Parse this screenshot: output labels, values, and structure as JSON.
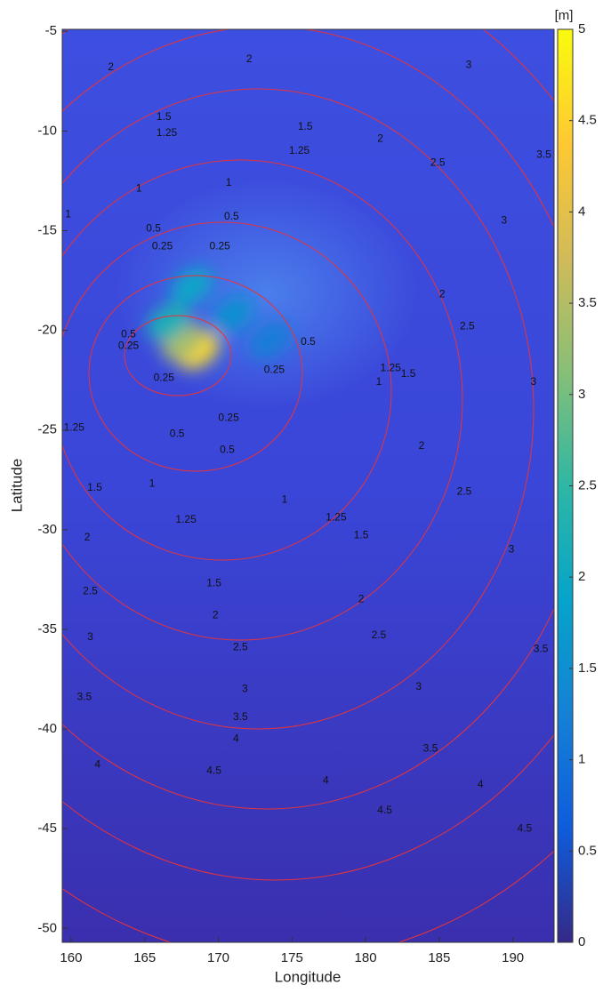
{
  "chart_data": {
    "type": "heatmap",
    "xlabel": "Longitude",
    "ylabel": "Latitude",
    "colorbar_label": "[m]",
    "xlim": [
      159.4,
      192.8
    ],
    "ylim": [
      -50.7,
      -4.9
    ],
    "xticks": [
      160,
      165,
      170,
      175,
      180,
      185,
      190
    ],
    "yticks": [
      -5,
      -10,
      -15,
      -20,
      -25,
      -30,
      -35,
      -40,
      -45,
      -50
    ],
    "clim": [
      0,
      5
    ],
    "cticks": [
      0,
      0.5,
      1,
      1.5,
      2,
      2.5,
      3,
      3.5,
      4,
      4.5,
      5
    ],
    "colormap": [
      "#352a87",
      "#0f5cdd",
      "#1481d6",
      "#06a4ca",
      "#2eb7a4",
      "#87bf77",
      "#d1bb59",
      "#fec832",
      "#f9fb0e"
    ],
    "contour_color": "#e8333a",
    "hotspots": [
      {
        "x": 168.6,
        "y": -21.0,
        "value": 4.6
      },
      {
        "x": 167.6,
        "y": -20.6,
        "value": 3.4
      },
      {
        "x": 166.6,
        "y": -19.6,
        "value": 2.2
      },
      {
        "x": 168.2,
        "y": -17.8,
        "value": 1.9
      },
      {
        "x": 171.0,
        "y": -19.2,
        "value": 1.5
      },
      {
        "x": 173.5,
        "y": -20.5,
        "value": 1.2
      }
    ],
    "contour_labels": [
      {
        "value": 2,
        "x": 162.7,
        "y": -6.8
      },
      {
        "value": 2,
        "x": 172.1,
        "y": -6.4
      },
      {
        "value": 3,
        "x": 187.0,
        "y": -6.7
      },
      {
        "value": 1.5,
        "x": 166.3,
        "y": -9.3
      },
      {
        "value": 1.5,
        "x": 175.9,
        "y": -9.8
      },
      {
        "value": 1.25,
        "x": 166.5,
        "y": -10.1
      },
      {
        "value": 1.25,
        "x": 175.5,
        "y": -11.0
      },
      {
        "value": 2,
        "x": 181.0,
        "y": -10.4
      },
      {
        "value": 2.5,
        "x": 184.9,
        "y": -11.6
      },
      {
        "value": 3.5,
        "x": 192.1,
        "y": -11.2
      },
      {
        "value": 1,
        "x": 164.6,
        "y": -12.9
      },
      {
        "value": 1,
        "x": 170.7,
        "y": -12.6
      },
      {
        "value": 1,
        "x": 159.8,
        "y": -14.2
      },
      {
        "value": 0.5,
        "x": 170.9,
        "y": -14.3
      },
      {
        "value": 0.5,
        "x": 165.6,
        "y": -14.9
      },
      {
        "value": 0.25,
        "x": 166.2,
        "y": -15.8
      },
      {
        "value": 0.25,
        "x": 170.1,
        "y": -15.8
      },
      {
        "value": 3,
        "x": 189.4,
        "y": -14.5
      },
      {
        "value": 2,
        "x": 185.2,
        "y": -18.2
      },
      {
        "value": 2.5,
        "x": 186.9,
        "y": -19.8
      },
      {
        "value": 0.5,
        "x": 163.9,
        "y": -20.2
      },
      {
        "value": 0.25,
        "x": 163.9,
        "y": -20.8
      },
      {
        "value": 0.5,
        "x": 176.1,
        "y": -20.6
      },
      {
        "value": 0.25,
        "x": 173.8,
        "y": -22.0
      },
      {
        "value": 1.25,
        "x": 181.7,
        "y": -21.9
      },
      {
        "value": 1.5,
        "x": 182.9,
        "y": -22.2
      },
      {
        "value": 1,
        "x": 180.9,
        "y": -22.6
      },
      {
        "value": 3,
        "x": 191.4,
        "y": -22.6
      },
      {
        "value": 0.25,
        "x": 166.3,
        "y": -22.4
      },
      {
        "value": 0.25,
        "x": 170.7,
        "y": -24.4
      },
      {
        "value": 0.5,
        "x": 167.2,
        "y": -25.2
      },
      {
        "value": 0.5,
        "x": 170.6,
        "y": -26.0
      },
      {
        "value": 1.25,
        "x": 160.2,
        "y": -24.9
      },
      {
        "value": 2,
        "x": 183.8,
        "y": -25.8
      },
      {
        "value": 1.5,
        "x": 161.6,
        "y": -27.9
      },
      {
        "value": 1,
        "x": 165.5,
        "y": -27.7
      },
      {
        "value": 1,
        "x": 174.5,
        "y": -28.5
      },
      {
        "value": 2.5,
        "x": 186.7,
        "y": -28.1
      },
      {
        "value": 1.25,
        "x": 167.8,
        "y": -29.5
      },
      {
        "value": 1.25,
        "x": 178.0,
        "y": -29.4
      },
      {
        "value": 1.5,
        "x": 179.7,
        "y": -30.3
      },
      {
        "value": 2,
        "x": 161.1,
        "y": -30.4
      },
      {
        "value": 3,
        "x": 189.9,
        "y": -31.0
      },
      {
        "value": 1.5,
        "x": 169.7,
        "y": -32.7
      },
      {
        "value": 2.5,
        "x": 161.3,
        "y": -33.1
      },
      {
        "value": 2,
        "x": 179.7,
        "y": -33.5
      },
      {
        "value": 2,
        "x": 169.8,
        "y": -34.3
      },
      {
        "value": 3,
        "x": 161.3,
        "y": -35.4
      },
      {
        "value": 2.5,
        "x": 171.5,
        "y": -35.9
      },
      {
        "value": 2.5,
        "x": 180.9,
        "y": -35.3
      },
      {
        "value": 3.5,
        "x": 191.9,
        "y": -36.0
      },
      {
        "value": 3,
        "x": 171.8,
        "y": -38.0
      },
      {
        "value": 3,
        "x": 183.6,
        "y": -37.9
      },
      {
        "value": 3.5,
        "x": 160.9,
        "y": -38.4
      },
      {
        "value": 3.5,
        "x": 171.5,
        "y": -39.4
      },
      {
        "value": 3.5,
        "x": 184.4,
        "y": -41.0
      },
      {
        "value": 4,
        "x": 171.2,
        "y": -40.5
      },
      {
        "value": 4,
        "x": 161.8,
        "y": -41.8
      },
      {
        "value": 4.5,
        "x": 169.7,
        "y": -42.1
      },
      {
        "value": 4,
        "x": 177.3,
        "y": -42.6
      },
      {
        "value": 4,
        "x": 187.8,
        "y": -42.8
      },
      {
        "value": 4.5,
        "x": 181.3,
        "y": -44.1
      },
      {
        "value": 4.5,
        "x": 190.8,
        "y": -45.0
      }
    ]
  }
}
